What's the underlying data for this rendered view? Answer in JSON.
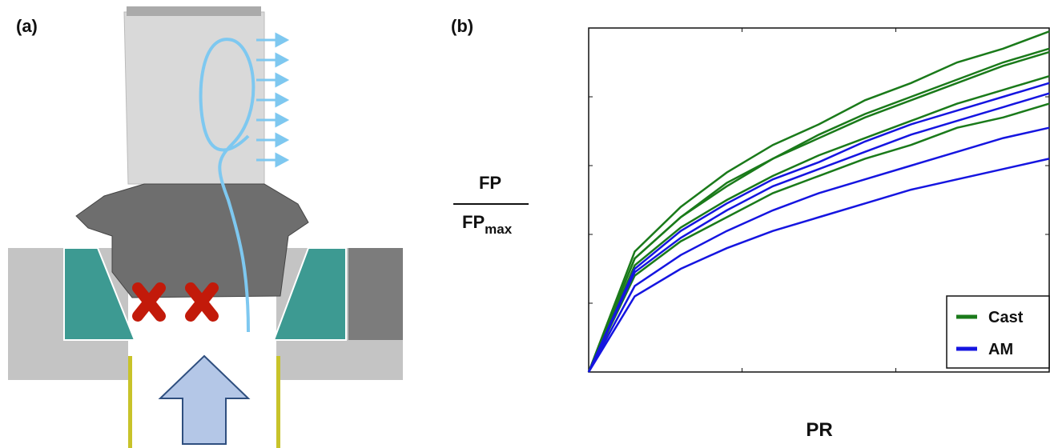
{
  "panel_a": {
    "label": "(a)"
  },
  "chart_data": {
    "type": "line",
    "panel_label": "(b)",
    "x_label": "PR",
    "y_label": {
      "numerator": "FP",
      "denominator": "FP",
      "denominator_subscript": "max"
    },
    "x": [
      0,
      0.1,
      0.2,
      0.3,
      0.4,
      0.5,
      0.6,
      0.7,
      0.8,
      0.9,
      1
    ],
    "xlim": [
      0,
      1
    ],
    "ylim": [
      0,
      1
    ],
    "xticks": [
      0.333,
      0.667
    ],
    "yticks": [
      0.2,
      0.4,
      0.6,
      0.8
    ],
    "legend": "lower right",
    "series": [
      {
        "name": "Cast",
        "color": "#1a7a1a",
        "lines": [
          [
            0,
            0.35,
            0.48,
            0.58,
            0.66,
            0.72,
            0.79,
            0.84,
            0.9,
            0.94,
            0.99
          ],
          [
            0,
            0.33,
            0.45,
            0.55,
            0.62,
            0.69,
            0.75,
            0.8,
            0.85,
            0.9,
            0.94
          ],
          [
            0,
            0.33,
            0.45,
            0.54,
            0.62,
            0.68,
            0.74,
            0.79,
            0.84,
            0.89,
            0.93
          ],
          [
            0,
            0.31,
            0.42,
            0.5,
            0.57,
            0.63,
            0.68,
            0.73,
            0.78,
            0.82,
            0.86
          ],
          [
            0,
            0.28,
            0.38,
            0.45,
            0.52,
            0.57,
            0.62,
            0.66,
            0.71,
            0.74,
            0.78
          ]
        ]
      },
      {
        "name": "AM",
        "color": "#1515e0",
        "lines": [
          [
            0,
            0.3,
            0.41,
            0.49,
            0.56,
            0.61,
            0.67,
            0.72,
            0.76,
            0.8,
            0.84
          ],
          [
            0,
            0.29,
            0.39,
            0.47,
            0.54,
            0.59,
            0.64,
            0.69,
            0.73,
            0.77,
            0.81
          ],
          [
            0,
            0.25,
            0.34,
            0.41,
            0.47,
            0.52,
            0.56,
            0.6,
            0.64,
            0.68,
            0.71
          ],
          [
            0,
            0.22,
            0.3,
            0.36,
            0.41,
            0.45,
            0.49,
            0.53,
            0.56,
            0.59,
            0.62
          ]
        ]
      }
    ]
  }
}
